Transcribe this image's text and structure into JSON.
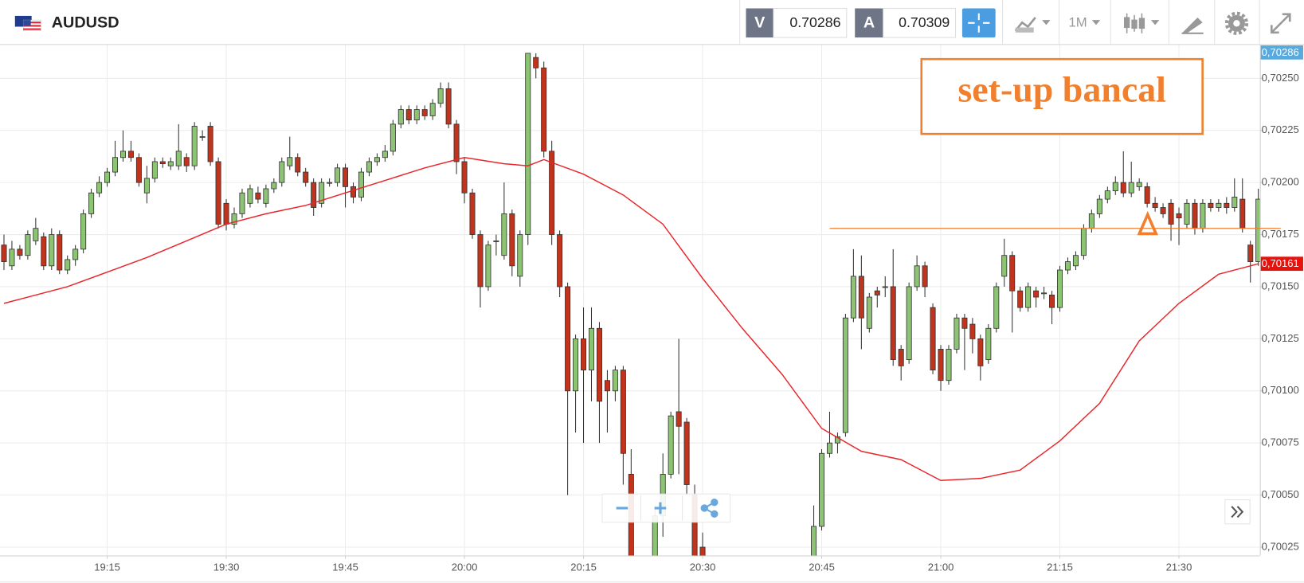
{
  "header": {
    "symbol": "AUDUSD",
    "bid_label": "V",
    "bid": "0.70286",
    "ask_label": "A",
    "ask": "0.70309",
    "timeframe": "1M"
  },
  "annotation": "set-up bancal",
  "chart_data": {
    "type": "candlestick",
    "x": [
      1142,
      1143,
      1144,
      1145,
      1146,
      1147,
      1148,
      1149,
      1150,
      1151,
      1152,
      1153,
      1154,
      1155,
      1156,
      1157,
      1158,
      1159,
      1160,
      1161,
      1162,
      1163,
      1164,
      1165,
      1166,
      1167,
      1168,
      1169,
      1170,
      1171,
      1172,
      1173,
      1174,
      1175,
      1176,
      1177,
      1178,
      1179,
      1180,
      1181,
      1182,
      1183,
      1184,
      1185,
      1186,
      1187,
      1188,
      1189,
      1190,
      1191,
      1192,
      1193,
      1194,
      1195,
      1196,
      1197,
      1198,
      1199,
      1200,
      1201,
      1202,
      1203,
      1204,
      1205,
      1206,
      1207,
      1208,
      1209,
      1210,
      1211,
      1212,
      1213,
      1214,
      1215,
      1216,
      1217,
      1218,
      1219,
      1220,
      1221,
      1222,
      1223,
      1224,
      1225,
      1226,
      1227,
      1228,
      1229,
      1230,
      1231,
      1232,
      1233,
      1234,
      1235,
      1236,
      1237,
      1238,
      1239,
      1240,
      1241,
      1242,
      1243,
      1244,
      1245,
      1246,
      1247,
      1248,
      1249,
      1250,
      1251,
      1252,
      1253,
      1254,
      1255,
      1256,
      1257,
      1258,
      1259,
      1260,
      1261,
      1262,
      1263,
      1264,
      1265,
      1266,
      1267,
      1268,
      1269,
      1270,
      1271,
      1272,
      1273,
      1274,
      1275,
      1276,
      1277,
      1278,
      1279,
      1280,
      1281,
      1282,
      1283,
      1284,
      1285,
      1286,
      1287,
      1288,
      1289,
      1290,
      1291,
      1292,
      1293,
      1294,
      1295,
      1296,
      1297,
      1298,
      1299,
      1300
    ],
    "open": [
      0.7017,
      0.7016,
      0.70168,
      0.70165,
      0.70172,
      0.70174,
      0.7016,
      0.70175,
      0.70158,
      0.70163,
      0.70168,
      0.70185,
      0.70195,
      0.702,
      0.70205,
      0.70212,
      0.70215,
      0.70212,
      0.70195,
      0.70202,
      0.7021,
      0.70208,
      0.70208,
      0.70212,
      0.70208,
      0.70222,
      0.70227,
      0.7021,
      0.7019,
      0.7018,
      0.70185,
      0.7019,
      0.70195,
      0.7019,
      0.70197,
      0.702,
      0.70208,
      0.70212,
      0.70205,
      0.702,
      0.7019,
      0.702,
      0.702,
      0.70207,
      0.70198,
      0.70193,
      0.70205,
      0.7021,
      0.70212,
      0.70215,
      0.70228,
      0.70235,
      0.7023,
      0.70235,
      0.70232,
      0.70238,
      0.70245,
      0.70228,
      0.7021,
      0.70195,
      0.70175,
      0.7015,
      0.70172,
      0.70165,
      0.70185,
      0.70155,
      0.70175,
      0.7026,
      0.70255,
      0.70215,
      0.70175,
      0.7015,
      0.701,
      0.70125,
      0.7011,
      0.7013,
      0.70105,
      0.701,
      0.7011,
      0.7006,
      null,
      null,
      0.7001,
      0.7004,
      0.7006,
      0.7009,
      0.70085,
      0.7005,
      0.70025,
      null,
      null,
      null,
      null,
      null,
      null,
      null,
      null,
      null,
      null,
      null,
      null,
      null,
      0.70005,
      0.70035,
      0.7007,
      0.70075,
      0.7008,
      0.70135,
      0.70155,
      0.7013,
      0.70148,
      0.7015,
      0.7015,
      0.7012,
      0.70115,
      0.7015,
      0.7016,
      0.7014,
      0.7012,
      0.70105,
      0.7012,
      0.70135,
      0.70132,
      0.70125,
      0.70115,
      0.7013,
      0.70155,
      0.70165,
      0.70148,
      0.7014,
      0.70148,
      0.70147,
      0.70146,
      0.7014,
      0.70158,
      0.7016,
      0.70165,
      0.70178,
      0.70185,
      0.70192,
      0.70196,
      0.702,
      0.70195,
      0.70198,
      0.70198,
      0.7019,
      0.70188,
      0.7019,
      0.70185,
      0.7018,
      0.7019,
      0.70178,
      0.7019,
      0.70188,
      0.7019,
      0.70188,
      0.70192,
      0.7017,
      0.70162
    ],
    "high": [
      0.70175,
      0.70172,
      0.7017,
      0.70177,
      0.70183,
      0.70176,
      0.70178,
      0.70177,
      0.70165,
      0.7017,
      0.70187,
      0.70197,
      0.70203,
      0.70207,
      0.7022,
      0.70225,
      0.7022,
      0.70214,
      0.70208,
      0.70212,
      0.70212,
      0.70212,
      0.70228,
      0.70214,
      0.70229,
      0.70225,
      0.70229,
      0.70212,
      0.70192,
      0.70188,
      0.70197,
      0.70199,
      0.70198,
      0.70199,
      0.70202,
      0.70212,
      0.70222,
      0.70214,
      0.70207,
      0.70202,
      0.70202,
      0.70202,
      0.70209,
      0.70209,
      0.702,
      0.70207,
      0.70212,
      0.70214,
      0.70218,
      0.7023,
      0.70237,
      0.70237,
      0.70237,
      0.70237,
      0.7024,
      0.70248,
      0.70248,
      0.7023,
      0.70212,
      0.70197,
      0.70177,
      0.70172,
      0.70175,
      0.702,
      0.70187,
      0.70177,
      0.70262,
      0.70262,
      0.70258,
      0.7022,
      0.70177,
      0.70152,
      0.70127,
      0.7014,
      0.7014,
      0.70133,
      0.7011,
      0.70112,
      0.70112,
      0.70072,
      null,
      null,
      0.70045,
      0.7007,
      0.7009,
      0.70125,
      0.70087,
      0.70055,
      0.70032,
      null,
      null,
      null,
      null,
      null,
      null,
      null,
      null,
      null,
      null,
      null,
      null,
      null,
      0.70045,
      0.70072,
      0.7009,
      0.7008,
      0.70137,
      0.70168,
      0.70165,
      0.70147,
      0.7015,
      0.70155,
      0.70168,
      0.70122,
      0.70152,
      0.70165,
      0.70162,
      0.70142,
      0.70122,
      0.70122,
      0.70137,
      0.70137,
      0.70135,
      0.70127,
      0.70132,
      0.70152,
      0.70173,
      0.70167,
      0.7015,
      0.70152,
      0.7015,
      0.7015,
      0.70148,
      0.7016,
      0.70164,
      0.70167,
      0.7018,
      0.70187,
      0.70194,
      0.70198,
      0.70203,
      0.70215,
      0.7021,
      0.70202,
      0.702,
      0.70193,
      0.7019,
      0.70192,
      0.70188,
      0.70192,
      0.70192,
      0.70192,
      0.70192,
      0.70192,
      0.70193,
      0.70202,
      0.70202,
      0.70172,
      0.70197
    ],
    "low": [
      0.70158,
      0.70158,
      0.70163,
      0.70163,
      0.7017,
      0.70158,
      0.70158,
      0.70156,
      0.70156,
      0.7016,
      0.70166,
      0.70183,
      0.70193,
      0.70198,
      0.70203,
      0.7021,
      0.7021,
      0.70198,
      0.7019,
      0.702,
      0.70207,
      0.70206,
      0.70206,
      0.70205,
      0.70206,
      0.7022,
      0.70208,
      0.70178,
      0.70177,
      0.70178,
      0.70183,
      0.70188,
      0.7019,
      0.70188,
      0.70195,
      0.70198,
      0.70206,
      0.70203,
      0.70198,
      0.70184,
      0.70188,
      0.70198,
      0.70198,
      0.70188,
      0.7019,
      0.70191,
      0.70203,
      0.70208,
      0.7021,
      0.70213,
      0.70226,
      0.70228,
      0.70228,
      0.7023,
      0.7023,
      0.70236,
      0.70226,
      0.70204,
      0.7019,
      0.70173,
      0.7014,
      0.70148,
      0.70165,
      0.70163,
      0.70155,
      0.7015,
      0.7017,
      0.7025,
      0.70212,
      0.7017,
      0.70145,
      0.7005,
      0.7008,
      0.70075,
      0.70095,
      0.70075,
      0.7008,
      0.70095,
      0.70055,
      0.7,
      null,
      null,
      0.7,
      0.7003,
      0.70058,
      0.7006,
      0.7005,
      0.7,
      0.7,
      null,
      null,
      null,
      null,
      null,
      null,
      null,
      null,
      null,
      null,
      null,
      null,
      null,
      0.7,
      0.70033,
      0.70068,
      0.7007,
      0.70078,
      0.70133,
      0.7012,
      0.70128,
      0.7014,
      0.70145,
      0.70112,
      0.70105,
      0.70113,
      0.70148,
      0.70145,
      0.70108,
      0.701,
      0.70103,
      0.70118,
      0.7011,
      0.70118,
      0.70105,
      0.70113,
      0.70128,
      0.7015,
      0.70128,
      0.70138,
      0.70138,
      0.7014,
      0.70144,
      0.70132,
      0.70138,
      0.70156,
      0.70158,
      0.70163,
      0.70176,
      0.70183,
      0.7019,
      0.70194,
      0.70193,
      0.70193,
      0.70196,
      0.70188,
      0.70186,
      0.70183,
      0.70172,
      0.7017,
      0.70178,
      0.70175,
      0.70176,
      0.70186,
      0.70186,
      0.70185,
      0.70186,
      0.70176,
      0.70152,
      0.7016
    ],
    "close": [
      0.70162,
      0.70168,
      0.70165,
      0.70175,
      0.70178,
      0.7016,
      0.70175,
      0.70158,
      0.70163,
      0.70168,
      0.70185,
      0.70195,
      0.702,
      0.70205,
      0.70212,
      0.70215,
      0.70212,
      0.702,
      0.70202,
      0.7021,
      0.70209,
      0.7021,
      0.70215,
      0.70208,
      0.70227,
      0.70222,
      0.7021,
      0.7018,
      0.7018,
      0.70185,
      0.70195,
      0.70197,
      0.70192,
      0.70197,
      0.702,
      0.7021,
      0.70212,
      0.70205,
      0.702,
      0.70188,
      0.702,
      0.702,
      0.70207,
      0.70198,
      0.70193,
      0.70205,
      0.7021,
      0.70212,
      0.70215,
      0.70228,
      0.70235,
      0.7023,
      0.70235,
      0.70232,
      0.70238,
      0.70245,
      0.70228,
      0.7021,
      0.70195,
      0.70175,
      0.7015,
      0.7017,
      0.70172,
      0.70185,
      0.7016,
      0.70175,
      0.70262,
      0.70255,
      0.70215,
      0.70175,
      0.7015,
      0.701,
      0.70125,
      0.7011,
      0.7013,
      0.70095,
      0.701,
      0.7011,
      0.7007,
      0.7001,
      null,
      null,
      0.7004,
      0.7006,
      0.70088,
      0.70083,
      0.70055,
      0.7001,
      0.70005,
      null,
      null,
      null,
      null,
      null,
      null,
      null,
      null,
      null,
      null,
      null,
      null,
      null,
      0.70035,
      0.7007,
      0.70075,
      0.70078,
      0.70135,
      0.70155,
      0.70135,
      0.70145,
      0.70146,
      0.7015,
      0.70115,
      0.70112,
      0.7015,
      0.7016,
      0.7015,
      0.7011,
      0.70105,
      0.7012,
      0.70135,
      0.7013,
      0.70125,
      0.70112,
      0.7013,
      0.7015,
      0.70165,
      0.70148,
      0.7014,
      0.7015,
      0.70145,
      0.70147,
      0.7014,
      0.70158,
      0.70162,
      0.70165,
      0.70178,
      0.70185,
      0.70192,
      0.70196,
      0.702,
      0.70195,
      0.702,
      0.702,
      0.7019,
      0.70188,
      0.70185,
      0.7018,
      0.70183,
      0.7019,
      0.70178,
      0.7019,
      0.70188,
      0.7019,
      0.70188,
      0.70193,
      0.70178,
      0.70162,
      0.70192
    ],
    "up_color": "#8cc474",
    "down_color": "#c0341d",
    "xlim": [
      1141.5,
      1300.2
    ],
    "ylim": [
      0.70021,
      0.70266
    ],
    "xticks": [
      {
        "value": 1155,
        "label": "19:15"
      },
      {
        "value": 1170,
        "label": "19:30"
      },
      {
        "value": 1185,
        "label": "19:45"
      },
      {
        "value": 1200,
        "label": "20:00"
      },
      {
        "value": 1215,
        "label": "20:15"
      },
      {
        "value": 1230,
        "label": "20:30"
      },
      {
        "value": 1245,
        "label": "20:45"
      },
      {
        "value": 1260,
        "label": "21:00"
      },
      {
        "value": 1275,
        "label": "21:15"
      },
      {
        "value": 1290,
        "label": "21:30"
      }
    ],
    "yticks": [
      {
        "value": 0.70025,
        "label": "0,70025"
      },
      {
        "value": 0.7005,
        "label": "0,70050"
      },
      {
        "value": 0.70075,
        "label": "0,70075"
      },
      {
        "value": 0.701,
        "label": "0,70100"
      },
      {
        "value": 0.70125,
        "label": "0,70125"
      },
      {
        "value": 0.7015,
        "label": "0,70150"
      },
      {
        "value": 0.70175,
        "label": "0,70175"
      },
      {
        "value": 0.702,
        "label": "0,70200"
      },
      {
        "value": 0.70225,
        "label": "0,70225"
      },
      {
        "value": 0.7025,
        "label": "0,70250"
      }
    ],
    "grid": true,
    "moving_average": {
      "color": "#e8262b",
      "x": [
        1142,
        1145,
        1150,
        1155,
        1160,
        1165,
        1170,
        1175,
        1180,
        1185,
        1190,
        1195,
        1200,
        1205,
        1208,
        1210,
        1215,
        1220,
        1225,
        1230,
        1235,
        1240,
        1245,
        1250,
        1255,
        1260,
        1265,
        1270,
        1275,
        1280,
        1285,
        1290,
        1295,
        1300
      ],
      "values": [
        0.70142,
        0.70145,
        0.7015,
        0.70157,
        0.70164,
        0.70172,
        0.7018,
        0.70185,
        0.70189,
        0.70195,
        0.70201,
        0.70207,
        0.70212,
        0.70209,
        0.70208,
        0.70211,
        0.70204,
        0.70194,
        0.7018,
        0.70154,
        0.7013,
        0.70108,
        0.70082,
        0.70071,
        0.70067,
        0.70057,
        0.70058,
        0.70062,
        0.70076,
        0.70094,
        0.70124,
        0.70142,
        0.70156,
        0.70161
      ]
    },
    "hline": {
      "value": 0.70178,
      "x_from": 1246,
      "color": "#f08030"
    },
    "price_tags": [
      {
        "value": 0.70286,
        "label": "0,70286",
        "color": "#5aa9dd"
      },
      {
        "value": 0.70161,
        "label": "0,70161",
        "color": "#e6120d"
      }
    ]
  }
}
